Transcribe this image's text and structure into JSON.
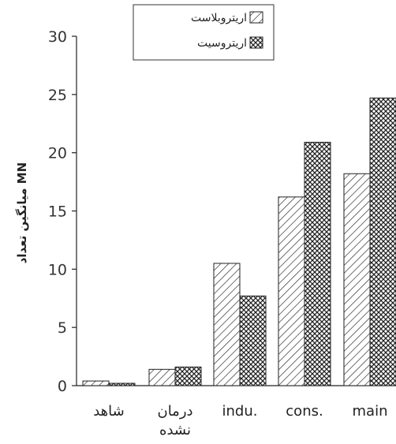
{
  "chart_data": {
    "type": "bar",
    "categories": [
      "شاهد",
      "درمان نشده",
      "indu.",
      "cons.",
      "main"
    ],
    "series": [
      {
        "name": "اریتروبلاست",
        "values": [
          0.4,
          1.4,
          10.5,
          16.2,
          18.2
        ],
        "pattern": "diagonal-hatch"
      },
      {
        "name": "اریتروسیت",
        "values": [
          0.2,
          1.6,
          7.7,
          20.9,
          24.7
        ],
        "pattern": "cross-hatch"
      }
    ],
    "ylabel": "میانگین تعداد MN",
    "ylim": [
      0,
      30
    ],
    "yticks": [
      0,
      5,
      10,
      15,
      20,
      25,
      30
    ],
    "legend_position": "top-center",
    "grid": false
  }
}
